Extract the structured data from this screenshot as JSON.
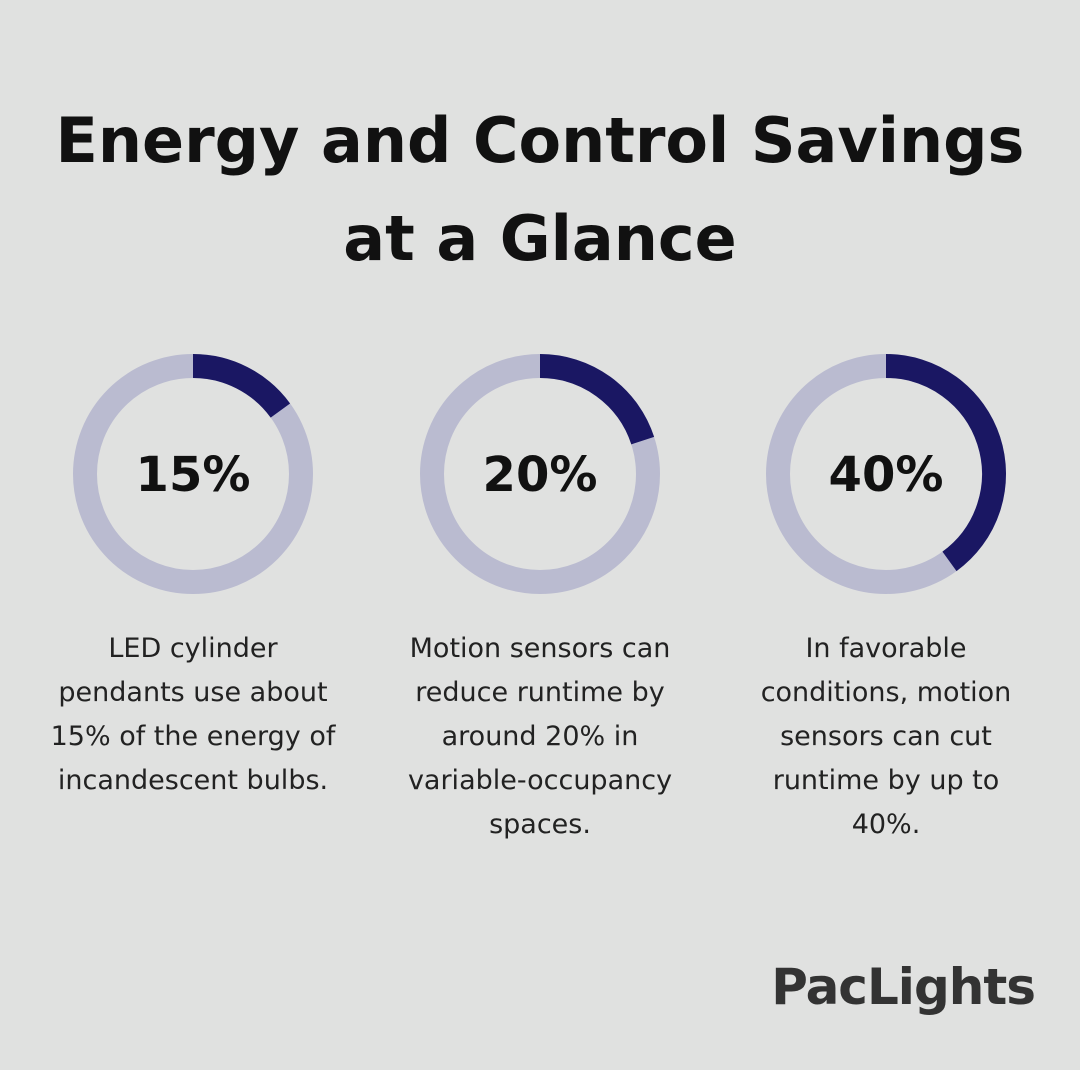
{
  "title": [
    "Energy and Control Savings",
    "at a Glance"
  ],
  "chart_data": [
    {
      "type": "donut",
      "values": [
        15
      ],
      "value_labels": [
        "15%"
      ],
      "color": "#1a1763",
      "track_color": "#babbd0",
      "caption": [
        "LED cylinder",
        "pendants use about",
        "15% of the energy of",
        "incandescent bulbs."
      ]
    },
    {
      "type": "donut",
      "values": [
        20
      ],
      "value_labels": [
        "20%"
      ],
      "color": "#1a1763",
      "track_color": "#babbd0",
      "caption": [
        "Motion sensors can",
        "reduce runtime by",
        "around 20% in",
        "variable-occupancy",
        "spaces."
      ]
    },
    {
      "type": "donut",
      "values": [
        40
      ],
      "value_labels": [
        "40%"
      ],
      "color": "#1a1763",
      "track_color": "#babbd0",
      "caption": [
        "In favorable",
        "conditions, motion",
        "sensors can cut",
        "runtime by up to",
        "40%."
      ]
    }
  ],
  "brand": "PacLights"
}
